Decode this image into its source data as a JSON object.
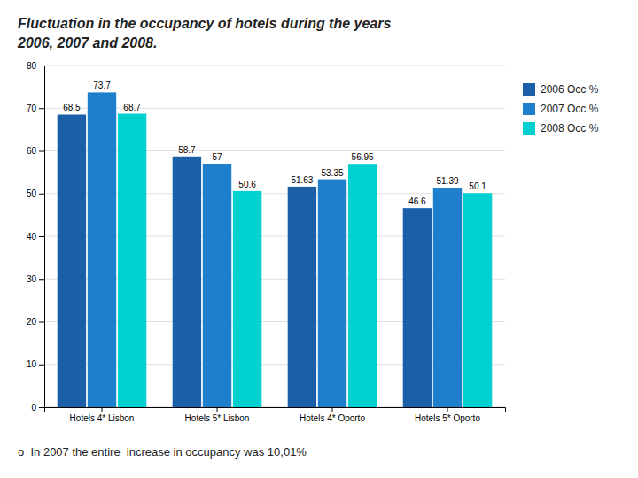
{
  "chart_data": {
    "type": "bar",
    "title": [
      "Fluctuation in the occupancy of hotels during the years",
      "2006, 2007 and 2008."
    ],
    "subtitle": "o  In 2007 the entire  increase in occupancy was 10,01%",
    "categories": [
      "Hotels 4* Lisbon",
      "Hotels 5* Lisbon",
      "Hotels 4* Oporto",
      "Hotels 5* Oporto"
    ],
    "series": [
      {
        "name": "2006 Occ %",
        "color": "#1a5fa8",
        "values": [
          68.5,
          58.7,
          51.63,
          46.6
        ]
      },
      {
        "name": "2007 Occ %",
        "color": "#1e7fcc",
        "values": [
          73.7,
          57,
          53.35,
          51.39
        ]
      },
      {
        "name": "2008 Occ %",
        "color": "#00d0d0",
        "values": [
          68.7,
          50.6,
          56.95,
          50.1
        ]
      }
    ],
    "ylim": [
      0,
      80
    ],
    "yticks": [
      0,
      10,
      20,
      30,
      40,
      50,
      60,
      70,
      80
    ],
    "grid": true,
    "legend": "right",
    "data_labels": true
  }
}
